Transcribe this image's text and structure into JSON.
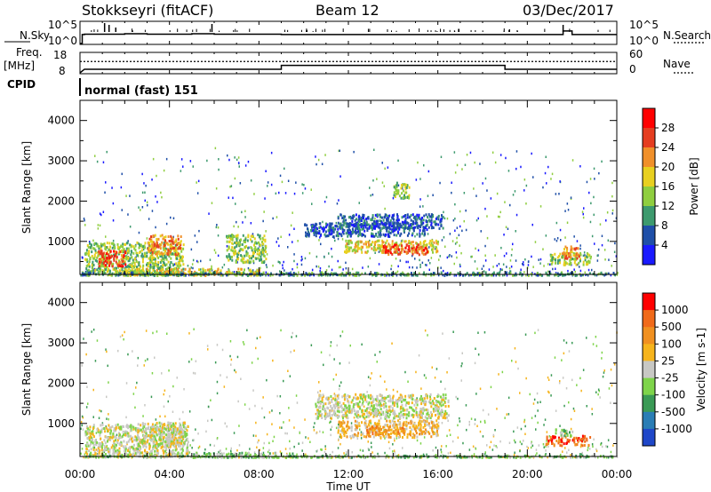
{
  "header": {
    "site": "Stokkseyri (fitACF)",
    "beam": "Beam 12",
    "date": "03/Dec/2017"
  },
  "left_labels": {
    "nsky": "N.Sky",
    "freq": "Freq.",
    "mhz": "[MHz]",
    "cpid": "CPID"
  },
  "right_labels": {
    "nsearch": "N.Search",
    "nave": "Nave"
  },
  "cpid_text": "normal (fast) 151",
  "x_axis": {
    "label": "Time UT",
    "ticks": [
      "00:00",
      "04:00",
      "08:00",
      "12:00",
      "16:00",
      "20:00",
      "00:00"
    ]
  },
  "chart_data": [
    {
      "type": "line",
      "panel": "noise",
      "left_axis": {
        "label": "N.Sky",
        "ticks": [
          "10^5",
          "10^0"
        ]
      },
      "right_axis": {
        "label": "N.Search",
        "ticks": [
          "10^5",
          "10^0"
        ]
      },
      "x": [
        0.0,
        0.1,
        0.2,
        1.0,
        2.0,
        3.0,
        4.0,
        5.0,
        6.0,
        7.0,
        8.0,
        9.0,
        10.0,
        12.0,
        14.0,
        16.0,
        18.0,
        20.0,
        21.5,
        21.6,
        22.0,
        24.0
      ],
      "n_sky_log10": [
        0.0,
        2.3,
        2.4,
        2.4,
        2.5,
        2.4,
        2.4,
        2.5,
        2.4,
        2.4,
        2.4,
        2.3,
        2.3,
        2.3,
        2.3,
        2.3,
        2.3,
        2.3,
        2.3,
        3.2,
        2.3,
        2.3
      ]
    },
    {
      "type": "line",
      "panel": "freq-nave",
      "left_axis": {
        "label": "Freq. [MHz]",
        "ticks": [
          "18",
          "8"
        ]
      },
      "right_axis": {
        "label": "Nave",
        "ticks": [
          "60",
          "0"
        ]
      },
      "nave": {
        "x": [
          0.0,
          0.2,
          9.0,
          9.0,
          19.0,
          19.0,
          24.0
        ],
        "values": [
          0,
          11,
          11,
          23,
          23,
          11,
          11
        ]
      },
      "freq": {
        "x": [
          0.0,
          24.0
        ],
        "values": [
          13.8,
          13.8
        ]
      }
    },
    {
      "type": "heatmap",
      "panel": "power",
      "title": "",
      "xlabel": "",
      "ylabel": "Slant Range [km]",
      "xlim": [
        0,
        24
      ],
      "ylim": [
        180,
        4500
      ],
      "yticks": [
        1000,
        2000,
        3000,
        4000
      ],
      "colorbar": {
        "label": "Power [dB]",
        "ticks": [
          "4",
          "8",
          "12",
          "16",
          "20",
          "24",
          "28"
        ],
        "colors": [
          "#1a1aff",
          "#1f4fa8",
          "#3d9a6e",
          "#8fce3f",
          "#e8d020",
          "#f0902a",
          "#e53d20",
          "#ff0000"
        ]
      },
      "regions": [
        {
          "t0": 0.2,
          "t1": 4.6,
          "r0": 180,
          "r1": 1000,
          "level": 3
        },
        {
          "t0": 0.8,
          "t1": 2.0,
          "r0": 400,
          "r1": 800,
          "level": 6
        },
        {
          "t0": 3.0,
          "t1": 4.5,
          "r0": 700,
          "r1": 1200,
          "level": 5
        },
        {
          "t0": 2.0,
          "t1": 8.0,
          "r0": 180,
          "r1": 350,
          "level": 4
        },
        {
          "t0": 6.5,
          "t1": 8.3,
          "r0": 500,
          "r1": 1200,
          "level": 3
        },
        {
          "t0": 10.0,
          "t1": 15.5,
          "r0": 1150,
          "r1": 1500,
          "level": 1
        },
        {
          "t0": 11.5,
          "t1": 16.2,
          "r0": 1350,
          "r1": 1700,
          "level": 1
        },
        {
          "t0": 11.8,
          "t1": 16.0,
          "r0": 750,
          "r1": 1050,
          "level": 4
        },
        {
          "t0": 13.5,
          "t1": 15.5,
          "r0": 700,
          "r1": 950,
          "level": 6
        },
        {
          "t0": 14.0,
          "t1": 14.7,
          "r0": 2100,
          "r1": 2500,
          "level": 3
        },
        {
          "t0": 0.0,
          "t1": 24.0,
          "r0": 180,
          "r1": 260,
          "level": 2
        },
        {
          "t0": 21.0,
          "t1": 22.8,
          "r0": 450,
          "r1": 750,
          "level": 3
        },
        {
          "t0": 21.5,
          "t1": 22.3,
          "r0": 600,
          "r1": 900,
          "level": 5
        }
      ]
    },
    {
      "type": "heatmap",
      "panel": "velocity",
      "title": "",
      "xlabel": "Time UT",
      "ylabel": "Slant Range [km]",
      "xlim": [
        0,
        24
      ],
      "ylim": [
        180,
        4500
      ],
      "yticks": [
        1000,
        2000,
        3000,
        4000
      ],
      "colorbar": {
        "label": "Velocity [m s-1]",
        "ticks": [
          "1000",
          "500",
          "100",
          "25",
          "-25",
          "-100",
          "-500",
          "-1000"
        ],
        "colors": [
          "#1f47c8",
          "#2a7db5",
          "#3a9a55",
          "#7ed44a",
          "#c8c8c4",
          "#f6b41c",
          "#f09020",
          "#f06a1a",
          "#ff0000"
        ]
      },
      "regions": [
        {
          "t0": 0.2,
          "t1": 4.8,
          "r0": 200,
          "r1": 1000,
          "level": 4
        },
        {
          "t0": 2.5,
          "t1": 4.7,
          "r0": 450,
          "r1": 1050,
          "level": 4
        },
        {
          "t0": 5.0,
          "t1": 9.5,
          "r0": 180,
          "r1": 300,
          "level": 3
        },
        {
          "t0": 10.5,
          "t1": 16.5,
          "r0": 1150,
          "r1": 1750,
          "level": 4
        },
        {
          "t0": 11.5,
          "t1": 16.0,
          "r0": 680,
          "r1": 1100,
          "level": 5
        },
        {
          "t0": 12.8,
          "t1": 14.5,
          "r0": 750,
          "r1": 950,
          "level": 6
        },
        {
          "t0": 0.0,
          "t1": 24.0,
          "r0": 180,
          "r1": 230,
          "level": 3
        },
        {
          "t0": 20.8,
          "t1": 22.8,
          "r0": 480,
          "r1": 720,
          "level": 7
        },
        {
          "t0": 21.2,
          "t1": 22.0,
          "r0": 700,
          "r1": 880,
          "level": 3
        }
      ]
    }
  ]
}
